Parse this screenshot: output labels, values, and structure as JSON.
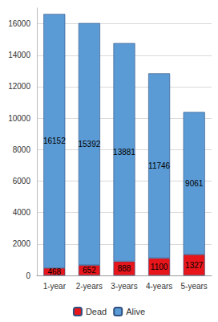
{
  "chart_data": {
    "type": "bar",
    "stacked": true,
    "data_labels": true,
    "grid": true,
    "legend": "bottom",
    "categories": [
      "1-year",
      "2-years",
      "3-years",
      "4-years",
      "5-years"
    ],
    "series": [
      {
        "name": "Dead",
        "color": "#e8161b",
        "values": [
          468,
          652,
          888,
          1100,
          1327
        ]
      },
      {
        "name": "Alive",
        "color": "#5b9bd5",
        "values": [
          16152,
          15392,
          13881,
          11746,
          9061
        ]
      }
    ],
    "ylim": [
      0,
      17000
    ],
    "yticks": [
      0,
      2000,
      4000,
      6000,
      8000,
      10000,
      12000,
      14000,
      16000
    ]
  }
}
